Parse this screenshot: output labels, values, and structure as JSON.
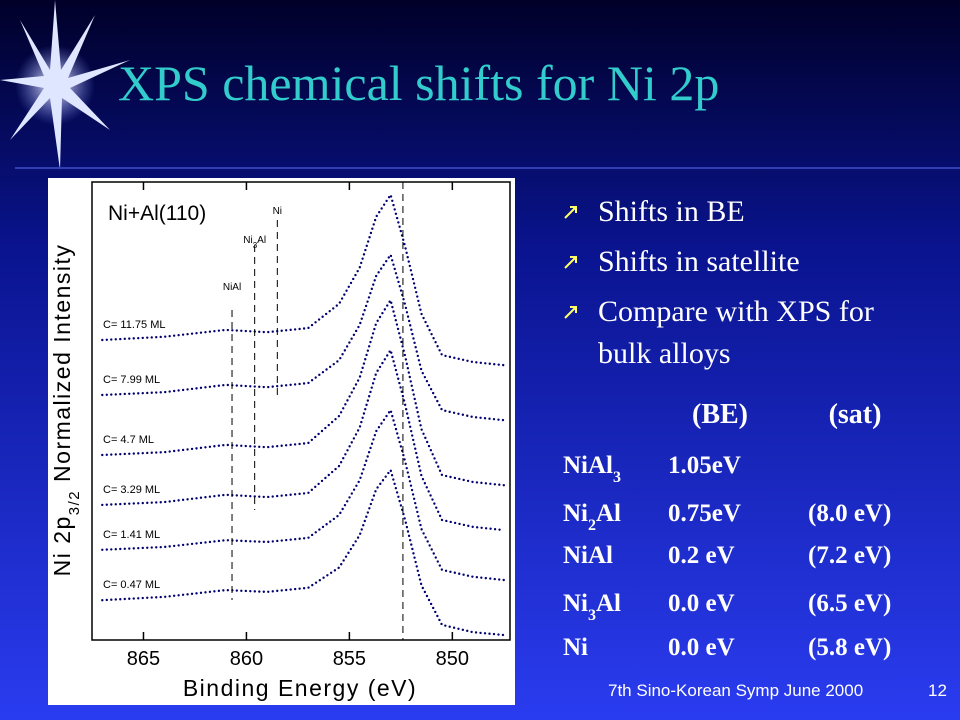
{
  "title": "XPS chemical shifts for Ni 2p",
  "bullets": [
    "Shifts in BE",
    "Shifts in satellite",
    "Compare with XPS for bulk alloys"
  ],
  "table": {
    "header": [
      "(BE)",
      "(sat)"
    ],
    "rows": [
      {
        "name": [
          "NiAl",
          "3"
        ],
        "be": "1.05eV"
      },
      {
        "name": [
          "Ni",
          "2",
          "Al"
        ],
        "be": "0.75eV",
        "sat": "(8.0 eV)"
      },
      {
        "name": [
          "NiAl"
        ],
        "be": "0.2  eV",
        "sat": "(7.2 eV)"
      },
      {
        "name": [
          "Ni",
          "3",
          "Al"
        ],
        "be": "0.0  eV",
        "sat": "(6.5 eV)"
      },
      {
        "name": [
          "Ni"
        ],
        "be": "0.0 eV",
        "sat": "(5.8 eV)"
      }
    ]
  },
  "footer": "7th Sino-Korean Symp June 2000",
  "page": "12",
  "chart_data": {
    "type": "line",
    "title": "Ni+Al(110)",
    "x_label": "Binding Energy (eV)",
    "y_label": [
      "Ni 2p",
      "3/2",
      " Normalized Intensity"
    ],
    "xlim": [
      867.5,
      847.2
    ],
    "xticks": [
      865,
      860,
      855,
      850
    ],
    "ylim": [
      0,
      100
    ],
    "x": [
      867,
      864,
      861,
      859,
      857,
      855.5,
      854.5,
      853.7,
      853,
      852.3,
      851.5,
      850.5,
      849,
      847.5
    ],
    "series": [
      {
        "name": "C= 11.75 ML",
        "color": "#000070",
        "values": [
          65.5,
          66.2,
          67.7,
          67.2,
          68.1,
          73.4,
          81.3,
          92.4,
          97.2,
          86.0,
          71.2,
          62.2,
          60.7,
          60.0
        ]
      },
      {
        "name": "C= 7.99 ML",
        "color": "#000070",
        "values": [
          53.5,
          54.1,
          55.7,
          55.2,
          56.1,
          61.1,
          68.8,
          79.5,
          84.1,
          73.3,
          58.8,
          50.2,
          48.7,
          48.0
        ]
      },
      {
        "name": "C= 4.7 ML",
        "color": "#000070",
        "values": [
          40.4,
          41.0,
          42.6,
          42.1,
          43.0,
          48.9,
          57.3,
          69.2,
          74.2,
          62.1,
          46.0,
          36.0,
          34.5,
          33.8
        ]
      },
      {
        "name": "C= 3.29 ML",
        "color": "#000070",
        "values": [
          29.5,
          30.1,
          31.7,
          31.2,
          32.1,
          38.0,
          46.4,
          58.3,
          63.3,
          51.5,
          35.8,
          26.2,
          24.7,
          24.0
        ]
      },
      {
        "name": "C= 1.41 ML",
        "color": "#000070",
        "values": [
          19.7,
          20.3,
          21.8,
          21.4,
          22.3,
          27.3,
          34.9,
          45.6,
          50.2,
          39.1,
          24.2,
          15.3,
          13.8,
          13.1
        ]
      },
      {
        "name": "C= 0.47 ML",
        "color": "#000070",
        "values": [
          8.7,
          9.4,
          10.9,
          10.5,
          11.4,
          15.8,
          22.9,
          32.9,
          37.1,
          26.3,
          11.9,
          3.3,
          1.7,
          1.1
        ]
      }
    ],
    "markers": [
      {
        "label": [
          "NiAl"
        ],
        "x": 860.7
      },
      {
        "label": [
          "Ni",
          "3",
          "Al"
        ],
        "x": 859.6
      },
      {
        "label": [
          "Ni"
        ],
        "x": 858.5
      },
      {
        "x": 852.4
      }
    ]
  }
}
